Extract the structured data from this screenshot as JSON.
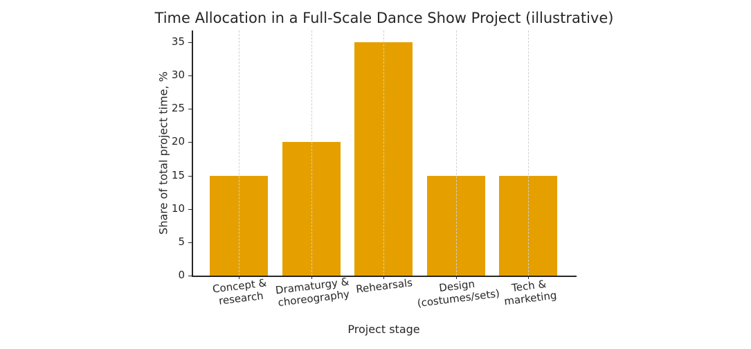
{
  "chart_data": {
    "type": "bar",
    "title": "Time Allocation in a Full-Scale Dance Show Project (illustrative)",
    "xlabel": "Project stage",
    "ylabel": "Share of total project time, %",
    "categories": [
      "Concept & research",
      "Dramaturgy & choreography",
      "Rehearsals",
      "Design (costumes/sets)",
      "Tech & marketing"
    ],
    "category_lines": [
      [
        "Concept &",
        "research"
      ],
      [
        "Dramaturgy &",
        "choreography"
      ],
      [
        "Rehearsals"
      ],
      [
        "Design",
        "(costumes/sets)"
      ],
      [
        "Tech &",
        "marketing"
      ]
    ],
    "values": [
      15,
      20,
      35,
      15,
      15
    ],
    "ylim": [
      0,
      36.75
    ],
    "yticks": [
      0,
      5,
      10,
      15,
      20,
      25,
      30,
      35
    ],
    "grid": {
      "x": true,
      "y": false,
      "style": "dashed"
    },
    "legend": null,
    "colors": {
      "bar": "#E5A000",
      "axis": "#262626",
      "grid": "#cfcfcf"
    }
  }
}
